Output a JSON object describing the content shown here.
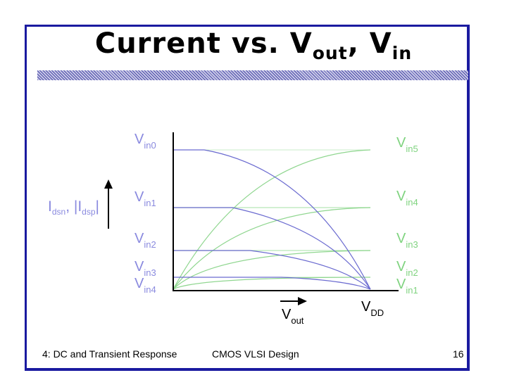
{
  "title": {
    "main": "Current vs. V",
    "sub1": "out",
    "sep": ", V",
    "sub2": "in"
  },
  "colors": {
    "border": "#1a1aa0",
    "nmos_curve": "#8fd68f",
    "pmos_curve": "#6b6bd0",
    "diagram_label": "#8a8adf",
    "ref_line": "#b8e8b8",
    "axis": "#000000"
  },
  "diagram": {
    "y_label_main": "I",
    "y_label_sub1": "dsn",
    "y_label_sep": ", |I",
    "y_label_sub2": "dsp",
    "y_label_end": "|",
    "x_label_main": "V",
    "x_label_sub": "out",
    "vdd_label_main": "V",
    "vdd_label_sub": "DD",
    "left_labels": [
      {
        "main": "V",
        "sub": "in0"
      },
      {
        "main": "V",
        "sub": "in1"
      },
      {
        "main": "V",
        "sub": "in2"
      },
      {
        "main": "V",
        "sub": "in3"
      },
      {
        "main": "V",
        "sub": "in4"
      }
    ],
    "right_labels": [
      {
        "main": "V",
        "sub": "in5"
      },
      {
        "main": "V",
        "sub": "in4"
      },
      {
        "main": "V",
        "sub": "in3"
      },
      {
        "main": "V",
        "sub": "in2"
      },
      {
        "main": "V",
        "sub": "in1"
      }
    ]
  },
  "footer": {
    "left": "4: DC and Transient Response",
    "center": "CMOS VLSI Design",
    "page": "16"
  }
}
